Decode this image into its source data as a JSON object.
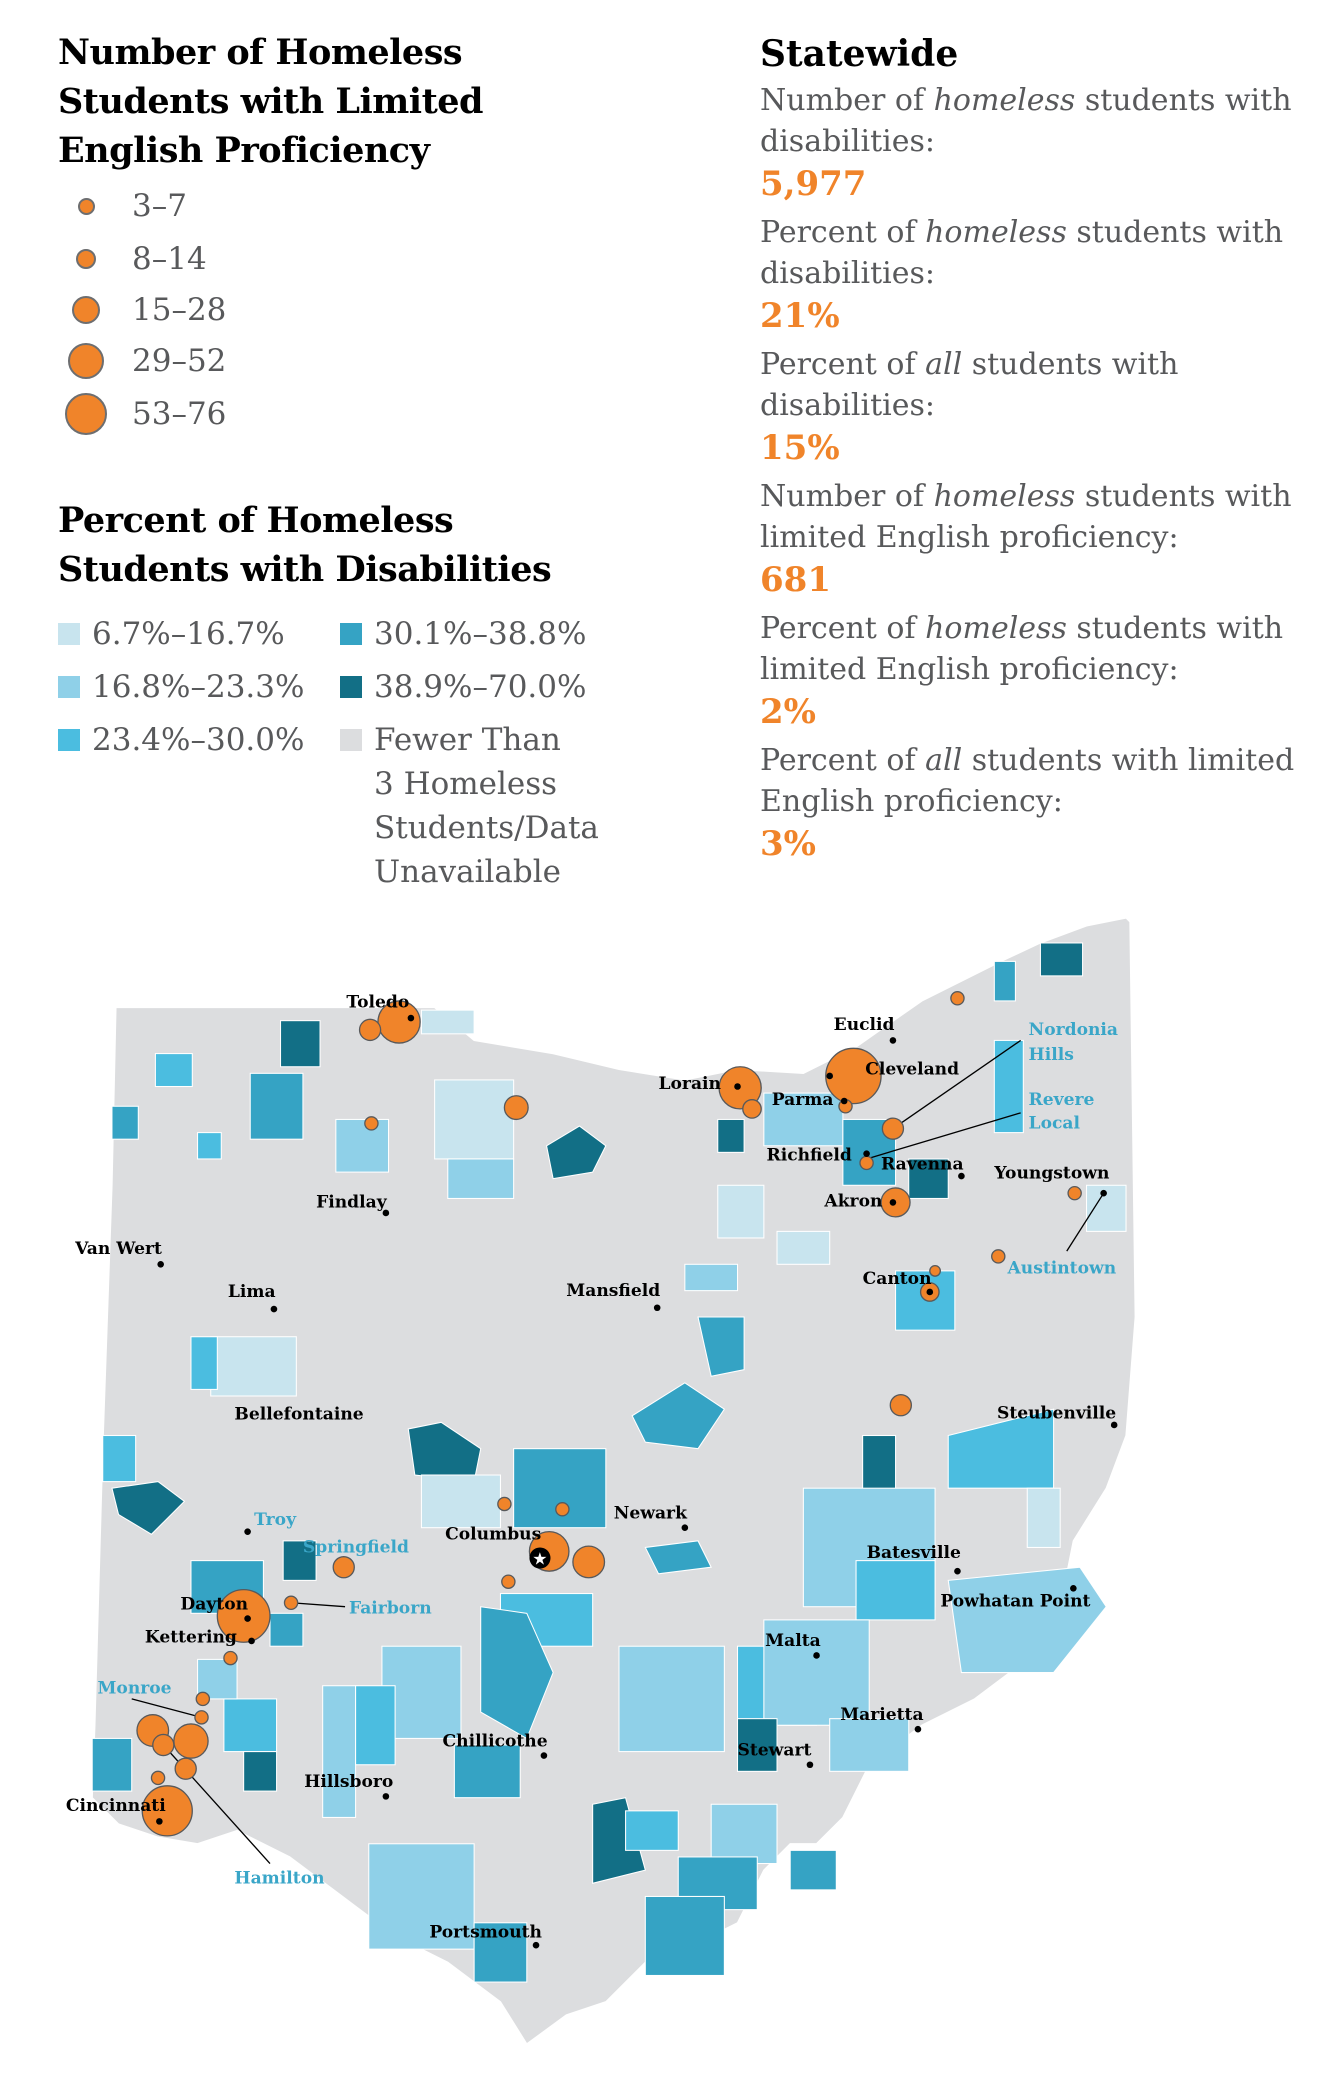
{
  "legend_size": {
    "title": "Number of Homeless Students with Limited English Proficiency",
    "title_lines": [
      "Number of Homeless",
      "Students with Limited",
      "English Proficiency"
    ],
    "items": [
      "3–7",
      "8–14",
      "15–28",
      "29–52",
      "53–76"
    ]
  },
  "legend_color": {
    "title_lines": [
      "Percent of Homeless",
      "Students with Disabilities"
    ],
    "items": [
      {
        "label": "6.7%–16.7%",
        "color": "#c8e4ee"
      },
      {
        "label": "16.8%–23.3%",
        "color": "#8fd0e8"
      },
      {
        "label": "23.4%–30.0%",
        "color": "#4bbde0"
      },
      {
        "label": "30.1%–38.8%",
        "color": "#35a3c4"
      },
      {
        "label": "38.9%–70.0%",
        "color": "#126f86"
      },
      {
        "label": "Fewer Than 3 Homeless Students/Data Unavailable",
        "color": "#dcdddf",
        "lines": [
          "Fewer Than",
          "3 Homeless",
          "Students/Data",
          "Unavailable"
        ]
      }
    ]
  },
  "statewide": {
    "title": "Statewide",
    "stats": [
      {
        "pre": "Number of ",
        "em": "homeless",
        "post": " students with disabilities:",
        "value": "5,977"
      },
      {
        "pre": "Percent of ",
        "em": "homeless",
        "post": " students with disabilities:",
        "value": "21%"
      },
      {
        "pre": "Percent of ",
        "em": "all",
        "post": " students with disabilities:",
        "value": "15%"
      },
      {
        "pre": "Number of ",
        "em": "homeless",
        "post": " students with limited English proficiency:",
        "value": "681"
      },
      {
        "pre": "Percent of ",
        "em": "homeless",
        "post": " students with limited English proficiency:",
        "value": "2%"
      },
      {
        "pre": "Percent of ",
        "em": "all",
        "post": " students with limited English proficiency:",
        "value": "3%"
      }
    ]
  },
  "map": {
    "colors": {
      "orange": "#f0842a",
      "base": "#dcdddf",
      "city_blue": "#3aa6c8"
    },
    "cities": [
      "Toledo",
      "Euclid",
      "Cleveland",
      "Lorain",
      "Parma",
      "Richfield",
      "Ravenna",
      "Youngstown",
      "Findlay",
      "Akron",
      "Van Wert",
      "Canton",
      "Lima",
      "Mansfield",
      "Bellefontaine",
      "Steubenville",
      "Newark",
      "Columbus",
      "Batesville",
      "Dayton",
      "Powhatan Point",
      "Kettering",
      "Malta",
      "Marietta",
      "Chillicothe",
      "Stewart",
      "Hillsboro",
      "Cincinnati",
      "Portsmouth"
    ],
    "districts": [
      "Nordonia",
      "Hills",
      "Revere",
      "Local",
      "Austintown",
      "Troy",
      "Springfield",
      "Fairborn",
      "Monroe",
      "Hamilton"
    ]
  }
}
